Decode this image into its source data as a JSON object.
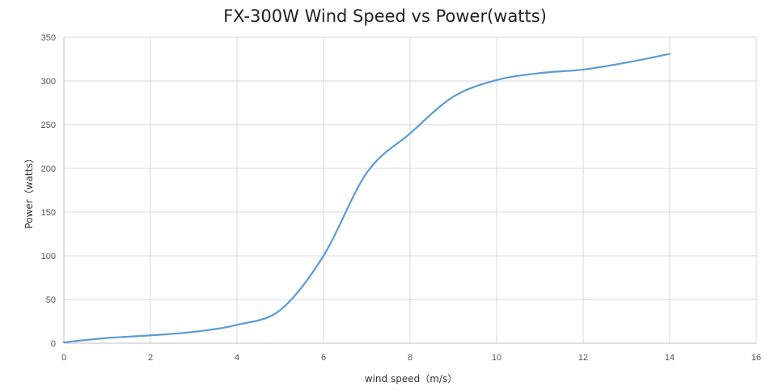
{
  "chart_data": {
    "type": "line",
    "title": "FX-300W Wind Speed vs Power(watts)",
    "xlabel": "wind speed（m/s）",
    "ylabel": "Power（watts）",
    "xlim": [
      0,
      16
    ],
    "ylim": [
      0,
      350
    ],
    "x_ticks": [
      0,
      2,
      4,
      6,
      8,
      10,
      12,
      14,
      16
    ],
    "y_ticks": [
      0,
      50,
      100,
      150,
      200,
      250,
      300,
      350
    ],
    "grid": true,
    "legend": "none",
    "series": [
      {
        "color": "#5b9bd5",
        "x": [
          0,
          1,
          2,
          3,
          4,
          5,
          6,
          7,
          8,
          9,
          10,
          11,
          12,
          13,
          14
        ],
        "y": [
          1,
          6,
          9,
          13,
          21,
          38,
          100,
          195,
          240,
          282,
          301,
          309,
          313,
          321,
          331
        ]
      }
    ]
  }
}
